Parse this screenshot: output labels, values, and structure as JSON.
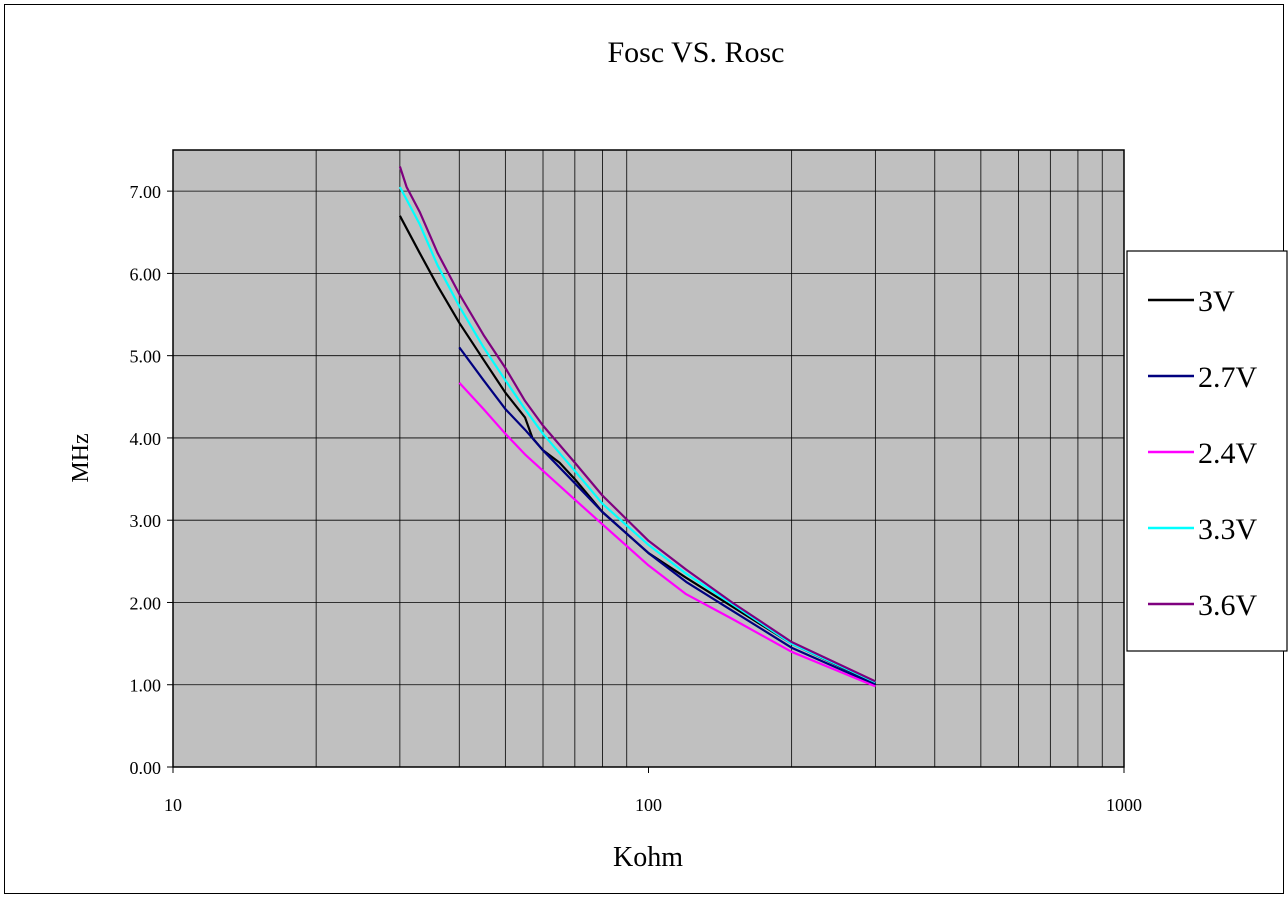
{
  "chart_data": {
    "type": "line",
    "title": "Fosc VS. Rosc",
    "xlabel": "Kohm",
    "ylabel": "MHz",
    "x_scale": "log",
    "xlim": [
      10,
      1000
    ],
    "ylim": [
      0,
      7.5
    ],
    "x_ticks": [
      "10",
      "100",
      "1000"
    ],
    "y_ticks": [
      "0.00",
      "1.00",
      "2.00",
      "3.00",
      "4.00",
      "5.00",
      "6.00",
      "7.00"
    ],
    "grid": true,
    "legend": "right",
    "series": [
      {
        "name": "3V",
        "color": "#000000",
        "x": [
          30,
          33,
          36,
          40,
          45,
          50,
          55,
          57,
          60,
          65,
          70,
          80,
          100,
          120,
          150,
          200,
          300
        ],
        "y": [
          6.7,
          6.25,
          5.85,
          5.4,
          4.95,
          4.55,
          4.25,
          4.0,
          3.85,
          3.7,
          3.5,
          3.1,
          2.6,
          2.3,
          1.95,
          1.5,
          1.02
        ]
      },
      {
        "name": "2.7V",
        "color": "#00007f",
        "x": [
          40,
          45,
          50,
          55,
          60,
          70,
          80,
          100,
          120,
          150,
          200,
          300
        ],
        "y": [
          5.1,
          4.7,
          4.35,
          4.1,
          3.85,
          3.45,
          3.1,
          2.6,
          2.25,
          1.9,
          1.45,
          1.0
        ]
      },
      {
        "name": "2.4V",
        "color": "#ff00ff",
        "x": [
          40,
          45,
          50,
          55,
          60,
          70,
          80,
          100,
          120,
          150,
          200,
          300
        ],
        "y": [
          4.67,
          4.35,
          4.05,
          3.8,
          3.6,
          3.25,
          2.95,
          2.45,
          2.1,
          1.8,
          1.4,
          0.98
        ]
      },
      {
        "name": "3.3V",
        "color": "#00ffff",
        "x": [
          30,
          33,
          36,
          40,
          45,
          50,
          55,
          60,
          70,
          80,
          100,
          120,
          150,
          200,
          300
        ],
        "y": [
          7.05,
          6.6,
          6.1,
          5.6,
          5.1,
          4.7,
          4.35,
          4.05,
          3.6,
          3.2,
          2.7,
          2.35,
          1.98,
          1.5,
          1.03
        ]
      },
      {
        "name": "3.6V",
        "color": "#7f007f",
        "x": [
          30,
          31,
          33,
          36,
          40,
          45,
          50,
          55,
          60,
          70,
          80,
          100,
          120,
          150,
          200,
          300
        ],
        "y": [
          7.3,
          7.05,
          6.75,
          6.25,
          5.75,
          5.25,
          4.85,
          4.45,
          4.15,
          3.7,
          3.3,
          2.75,
          2.4,
          2.0,
          1.52,
          1.04
        ]
      }
    ]
  }
}
